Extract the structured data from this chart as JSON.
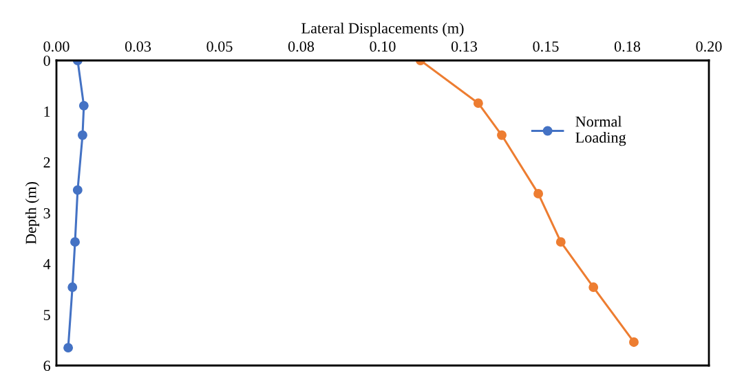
{
  "chart_data": {
    "type": "line",
    "xlabel": "Lateral Displacements (m)",
    "ylabel": "Depth (m)",
    "series": [
      {
        "name": "Normal Loading",
        "color": "#4472c4",
        "x": [
          0.0065,
          0.0084,
          0.008,
          0.0065,
          0.0057,
          0.0049,
          0.0036
        ],
        "values": [
          0,
          0.89,
          1.47,
          2.55,
          3.57,
          4.46,
          5.65
        ]
      },
      {
        "color": "#ed7d31",
        "x": [
          0.1116,
          0.1293,
          0.1365,
          0.1477,
          0.1546,
          0.1646,
          0.177
        ],
        "values": [
          0,
          0.84,
          1.47,
          2.62,
          3.57,
          4.46,
          5.54
        ]
      }
    ],
    "xlim": [
      0,
      0.2
    ],
    "ylim": [
      6,
      0
    ],
    "xticks": [
      {
        "value": 0,
        "label": "0.00"
      },
      {
        "value": 0.025,
        "label": "0.03"
      },
      0.05,
      {
        "value": 0.075,
        "label": "0.08"
      },
      {
        "value": 0.1,
        "label": "0.10"
      },
      {
        "value": 0.125,
        "label": "0.13"
      },
      0.15,
      {
        "value": 0.175,
        "label": "0.18"
      },
      {
        "value": 0.2,
        "label": "0.20"
      }
    ],
    "yticks": [
      0,
      1,
      2,
      3,
      4,
      5,
      6
    ],
    "marker": "circle",
    "line_style": "solid",
    "grid": false,
    "legend": "top right"
  }
}
